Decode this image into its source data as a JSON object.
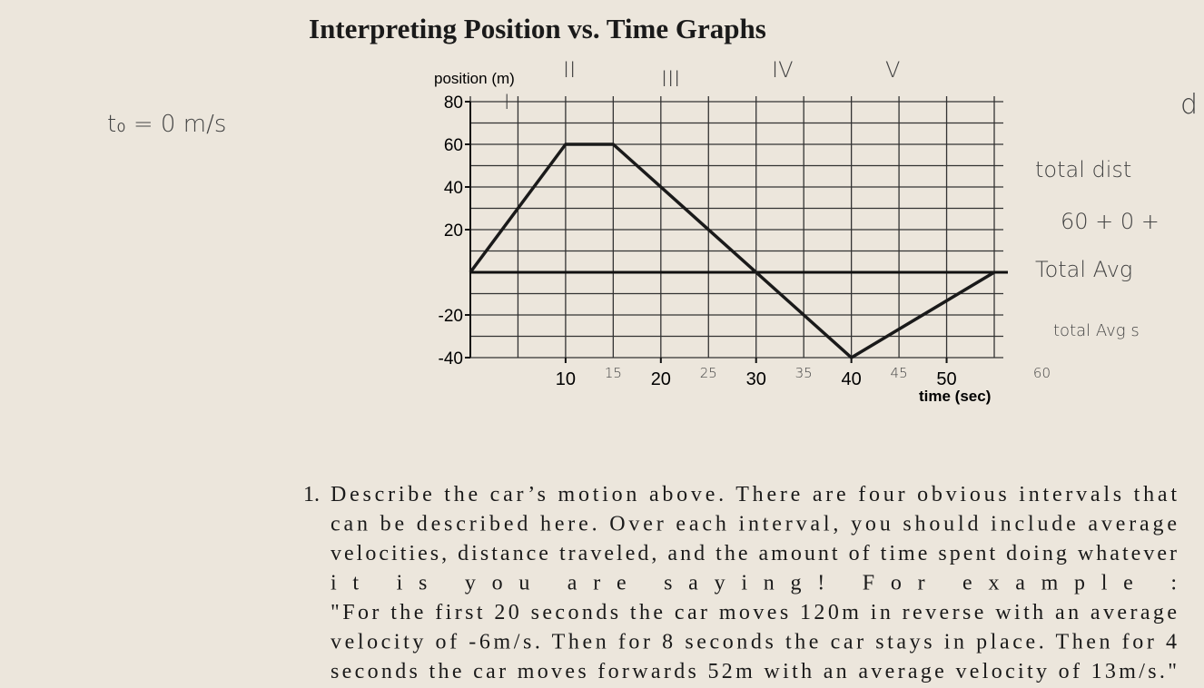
{
  "title": "Interpreting Position vs. Time Graphs",
  "chart_data": {
    "type": "line",
    "ylabel": "position (m)",
    "xlabel": "time (sec)",
    "x": [
      0,
      10,
      15,
      40,
      55
    ],
    "series": [
      {
        "name": "position",
        "color": "#1a1a1a",
        "values": [
          0,
          60,
          60,
          -40,
          0
        ]
      }
    ],
    "xlim": [
      0,
      55
    ],
    "ylim": [
      -40,
      80
    ],
    "xticks": [
      10,
      20,
      30,
      40,
      50
    ],
    "yticks": [
      80,
      60,
      40,
      20,
      -20,
      -40
    ],
    "xgrid": [
      0,
      5,
      10,
      15,
      20,
      25,
      30,
      35,
      40,
      45,
      50,
      55
    ],
    "ygrid": [
      -40,
      -30,
      -20,
      -10,
      0,
      10,
      20,
      30,
      40,
      50,
      60,
      70,
      80
    ],
    "grid": true,
    "handwritten_xticks": [
      15,
      25,
      35,
      45,
      60
    ]
  },
  "handwritten": {
    "intervals": [
      "I",
      "II",
      "III",
      "IV",
      "V"
    ],
    "initial": "t₀ = 0 m/s",
    "notes": [
      "d",
      "total dist",
      "60 + 0 +",
      "Total Avg",
      "total Avg s"
    ]
  },
  "question": {
    "number": "1.",
    "lines": [
      "Describe the car’s motion above. There are four obvious intervals that",
      "can be described here. Over each interval, you should include average",
      "velocities, distance traveled, and the amount of time spent doing whatever",
      "it is you are saying! For example :",
      "\"For the first 20 seconds the car moves 120m in reverse with an average",
      "velocity of -6m/s. Then for 8 seconds the car stays in place. Then for 4",
      "seconds the car moves forwards 52m with an average velocity of 13m/s.\""
    ]
  }
}
